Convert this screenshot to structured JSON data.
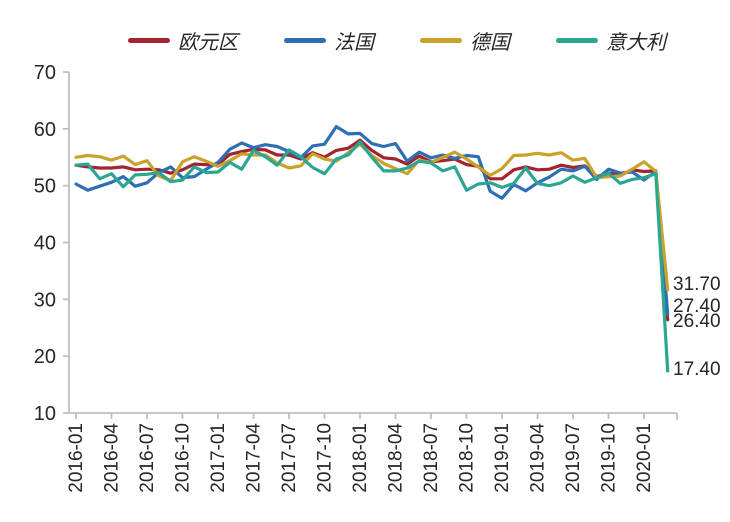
{
  "chart_data": {
    "type": "line",
    "title": "",
    "xlabel": "",
    "ylabel": "",
    "ylim": [
      10,
      70
    ],
    "y_ticks": [
      70,
      60,
      50,
      40,
      30,
      20,
      10
    ],
    "grid": false,
    "legend_position": "top",
    "x": [
      "2016-01",
      "2016-02",
      "2016-03",
      "2016-04",
      "2016-05",
      "2016-06",
      "2016-07",
      "2016-08",
      "2016-09",
      "2016-10",
      "2016-11",
      "2016-12",
      "2017-01",
      "2017-02",
      "2017-03",
      "2017-04",
      "2017-05",
      "2017-06",
      "2017-07",
      "2017-08",
      "2017-09",
      "2017-10",
      "2017-11",
      "2017-12",
      "2018-01",
      "2018-02",
      "2018-03",
      "2018-04",
      "2018-05",
      "2018-06",
      "2018-07",
      "2018-08",
      "2018-09",
      "2018-10",
      "2018-11",
      "2018-12",
      "2019-01",
      "2019-02",
      "2019-03",
      "2019-04",
      "2019-05",
      "2019-06",
      "2019-07",
      "2019-08",
      "2019-09",
      "2019-10",
      "2019-11",
      "2019-12",
      "2020-01",
      "2020-02",
      "2020-03"
    ],
    "x_tick_labels": [
      "2016-01",
      "2016-04",
      "2016-07",
      "2016-10",
      "2017-01",
      "2017-04",
      "2017-07",
      "2017-10",
      "2018-01",
      "2018-04",
      "2018-07",
      "2018-10",
      "2019-01",
      "2019-04",
      "2019-07",
      "2019-10",
      "2020-01"
    ],
    "series": [
      {
        "name": "欧元区",
        "color": "#A2242F",
        "values": [
          53.6,
          53.3,
          53.1,
          53.1,
          53.3,
          52.8,
          52.9,
          52.8,
          52.2,
          52.8,
          53.8,
          53.7,
          53.7,
          55.5,
          56.0,
          56.4,
          56.3,
          55.4,
          55.4,
          54.7,
          55.8,
          55.0,
          56.2,
          56.6,
          58.0,
          56.2,
          54.9,
          54.7,
          53.8,
          55.2,
          54.2,
          54.4,
          54.7,
          53.7,
          53.4,
          51.2,
          51.2,
          52.8,
          53.3,
          52.8,
          52.9,
          53.6,
          53.2,
          53.5,
          51.6,
          52.2,
          51.9,
          52.8,
          52.5,
          52.6,
          26.4
        ]
      },
      {
        "name": "法国",
        "color": "#2E6EB5",
        "values": [
          50.3,
          49.2,
          49.9,
          50.6,
          51.6,
          49.9,
          50.5,
          52.3,
          53.3,
          51.4,
          51.6,
          52.9,
          54.1,
          56.4,
          57.5,
          56.7,
          57.2,
          56.9,
          56.0,
          54.9,
          57.0,
          57.3,
          60.4,
          59.1,
          59.2,
          57.4,
          56.9,
          57.4,
          54.3,
          55.9,
          54.9,
          55.4,
          54.8,
          55.3,
          55.1,
          49.0,
          47.8,
          50.2,
          49.1,
          50.5,
          51.5,
          52.9,
          52.6,
          53.4,
          51.1,
          52.9,
          52.2,
          52.4,
          51.0,
          52.5,
          27.4
        ]
      },
      {
        "name": "德国",
        "color": "#C9A22A",
        "values": [
          55.0,
          55.3,
          55.1,
          54.5,
          55.2,
          53.7,
          54.4,
          51.7,
          50.9,
          54.2,
          55.1,
          54.3,
          53.4,
          54.4,
          55.6,
          55.4,
          55.4,
          54.0,
          53.1,
          53.5,
          55.6,
          54.7,
          54.3,
          55.8,
          57.3,
          55.3,
          53.9,
          53.0,
          52.1,
          54.5,
          54.1,
          55.0,
          55.9,
          54.7,
          53.3,
          51.8,
          53.0,
          55.3,
          55.4,
          55.7,
          55.4,
          55.8,
          54.5,
          54.8,
          51.4,
          51.6,
          51.7,
          52.9,
          54.2,
          52.5,
          31.7
        ]
      },
      {
        "name": "意大利",
        "color": "#2AA693",
        "values": [
          53.6,
          53.8,
          51.2,
          52.1,
          49.8,
          51.9,
          52.0,
          52.3,
          50.7,
          51.0,
          53.3,
          52.3,
          52.4,
          54.1,
          52.9,
          56.2,
          55.1,
          53.6,
          56.3,
          55.1,
          53.2,
          52.1,
          54.7,
          55.4,
          57.7,
          55.0,
          52.6,
          52.6,
          53.1,
          54.3,
          54.0,
          52.6,
          53.3,
          49.2,
          50.3,
          50.5,
          49.7,
          50.4,
          53.1,
          50.4,
          50.0,
          50.5,
          51.7,
          50.6,
          51.4,
          52.2,
          50.4,
          51.1,
          51.4,
          52.1,
          17.4
        ]
      }
    ],
    "end_labels": [
      {
        "series": "德国",
        "value": 31.7,
        "text": "31.70"
      },
      {
        "series": "法国",
        "value": 27.4,
        "text": "27.40"
      },
      {
        "series": "欧元区",
        "value": 26.4,
        "text": "26.40"
      },
      {
        "series": "意大利",
        "value": 17.4,
        "text": "17.40"
      }
    ]
  }
}
